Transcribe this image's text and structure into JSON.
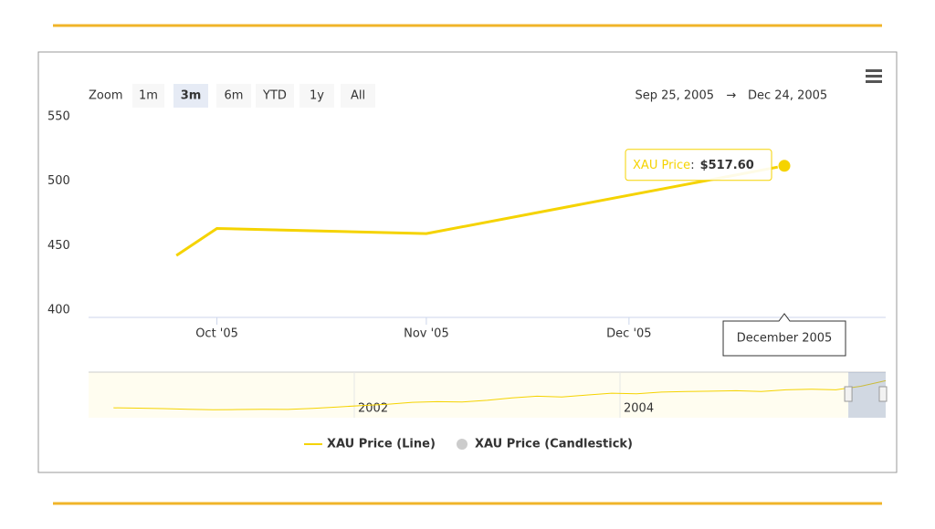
{
  "chart_data": {
    "type": "line",
    "range_selector": {
      "label": "Zoom",
      "buttons": [
        "1m",
        "3m",
        "6m",
        "YTD",
        "1y",
        "All"
      ],
      "selected": 1
    },
    "range_input": {
      "from": "Sep 25, 2005",
      "separator": "→",
      "to": "Dec 24, 2005"
    },
    "x": [
      "2005-09-25",
      "2005-10-01",
      "2005-11-01",
      "2005-12-24"
    ],
    "xlim": [
      "2005-09-12",
      "2006-01-08"
    ],
    "xticks": [
      {
        "value": "2005-10-01",
        "label": "Oct '05"
      },
      {
        "value": "2005-11-01",
        "label": "Nov '05"
      },
      {
        "value": "2005-12-01",
        "label": "Dec '05"
      }
    ],
    "ylim": [
      400,
      550
    ],
    "yticks": [
      400,
      450,
      500,
      550
    ],
    "grid": false,
    "series": [
      {
        "name": "XAU Price (Line)",
        "color": "#f5d300",
        "values": [
          448,
          469,
          465,
          517.6
        ],
        "value_labels": [
          null,
          null,
          null,
          "$517.60"
        ],
        "visible": true
      },
      {
        "name": "XAU Price (Candlestick)",
        "color": "#cccccc",
        "visible": false
      }
    ],
    "tooltip": {
      "series_label": "XAU Price",
      "separator": ":",
      "point": 3,
      "header": "December 2005"
    },
    "navigator": {
      "xlim": [
        2000,
        2006
      ],
      "xticks": [
        2002,
        2004
      ],
      "ylim": [
        200,
        560
      ],
      "values": [
        285,
        282,
        278,
        272,
        268,
        270,
        272,
        271,
        280,
        292,
        305,
        315,
        332,
        338,
        335,
        350,
        370,
        385,
        378,
        395,
        410,
        405,
        420,
        425,
        428,
        432,
        425,
        440,
        445,
        440,
        470,
        517.6
      ]
    }
  }
}
